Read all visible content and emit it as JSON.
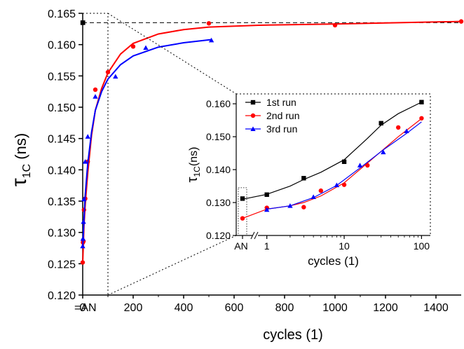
{
  "chart_data": [
    {
      "id": "main",
      "type": "scatter",
      "xlabel": "cycles (1)",
      "ylabel_main": "τ",
      "ylabel_sub": "1C",
      "ylabel_unit": "(ns)",
      "xlim": [
        0,
        1500
      ],
      "ylim": [
        0.12,
        0.165
      ],
      "x_ticks": [
        0,
        200,
        400,
        600,
        800,
        1000,
        1200,
        1400
      ],
      "y_ticks": [
        0.12,
        0.125,
        0.13,
        0.135,
        0.14,
        0.145,
        0.15,
        0.155,
        0.16,
        0.165
      ],
      "x_tick_labels": [
        "0",
        "200",
        "400",
        "600",
        "800",
        "1000",
        "1200",
        "1400"
      ],
      "y_tick_labels": [
        "0.120",
        "0.125",
        "0.130",
        "0.135",
        "0.140",
        "0.145",
        "0.150",
        "0.155",
        "0.160",
        "0.165"
      ],
      "an_label": "=AN",
      "grid": false,
      "series": [
        {
          "color": "#000000",
          "marker": "square",
          "points": [
            [
              0,
              0.1635
            ],
            [
              1,
              0.1635
            ]
          ],
          "curve": [],
          "dashed_to": 1500
        },
        {
          "color": "#ff0000",
          "marker": "circle",
          "points": [
            [
              0,
              0.1252
            ],
            [
              1,
              0.1284
            ],
            [
              3,
              0.1286
            ],
            [
              5,
              0.1336
            ],
            [
              10,
              0.1354
            ],
            [
              20,
              0.1413
            ],
            [
              50,
              0.1528
            ],
            [
              100,
              0.1556
            ],
            [
              200,
              0.1597
            ],
            [
              500,
              0.1634
            ],
            [
              1000,
              0.1631
            ],
            [
              1500,
              0.1637
            ]
          ],
          "curve": [
            [
              0,
              0.125
            ],
            [
              5,
              0.131
            ],
            [
              10,
              0.1345
            ],
            [
              20,
              0.1395
            ],
            [
              35,
              0.1455
            ],
            [
              50,
              0.1495
            ],
            [
              75,
              0.153
            ],
            [
              100,
              0.1555
            ],
            [
              150,
              0.1585
            ],
            [
              200,
              0.1602
            ],
            [
              300,
              0.1617
            ],
            [
              400,
              0.1624
            ],
            [
              500,
              0.1628
            ],
            [
              700,
              0.1631
            ],
            [
              1000,
              0.1633
            ],
            [
              1500,
              0.1637
            ]
          ]
        },
        {
          "color": "#0000ff",
          "marker": "triangle",
          "points": [
            [
              0,
              0.1278
            ],
            [
              1,
              0.129
            ],
            [
              3,
              0.1317
            ],
            [
              5,
              0.1353
            ],
            [
              10,
              0.1413
            ],
            [
              20,
              0.1453
            ],
            [
              50,
              0.1517
            ],
            [
              130,
              0.1549
            ],
            [
              250,
              0.1595
            ],
            [
              510,
              0.1607
            ]
          ],
          "curve": [
            [
              0,
              0.1275
            ],
            [
              5,
              0.132
            ],
            [
              10,
              0.136
            ],
            [
              20,
              0.141
            ],
            [
              35,
              0.146
            ],
            [
              50,
              0.1495
            ],
            [
              75,
              0.1525
            ],
            [
              100,
              0.1545
            ],
            [
              150,
              0.1568
            ],
            [
              200,
              0.1582
            ],
            [
              300,
              0.1596
            ],
            [
              400,
              0.1603
            ],
            [
              510,
              0.1608
            ]
          ]
        }
      ],
      "zoom_box": {
        "x": [
          0,
          100
        ],
        "y": [
          0.12,
          0.165
        ]
      }
    },
    {
      "id": "inset",
      "type": "line",
      "xlabel": "cycles (1)",
      "ylabel_main": "τ",
      "ylabel_sub": "1C",
      "ylabel_unit": "(ns)",
      "x_scale": "log",
      "xlim": [
        0.8,
        130
      ],
      "ylim": [
        0.12,
        0.163
      ],
      "x_ticks": [
        1,
        10,
        100
      ],
      "x_tick_labels": [
        "1",
        "10",
        "100"
      ],
      "an_tick_label": "AN",
      "y_ticks": [
        0.12,
        0.13,
        0.14,
        0.15,
        0.16
      ],
      "y_tick_labels": [
        "0.120",
        "0.130",
        "0.140",
        "0.150",
        "0.160"
      ],
      "legend_position": "top-left",
      "series": [
        {
          "name": "1st run",
          "color": "#000000",
          "marker": "square",
          "an_point": 0.1312,
          "points": [
            [
              1,
              0.1324
            ],
            [
              3,
              0.1374
            ],
            [
              10,
              0.1424
            ],
            [
              30,
              0.1541
            ],
            [
              100,
              0.1605
            ]
          ],
          "an_curve": 0.131,
          "curve": [
            [
              1,
              0.1325
            ],
            [
              2,
              0.135
            ],
            [
              3,
              0.137
            ],
            [
              5,
              0.1392
            ],
            [
              10,
              0.143
            ],
            [
              20,
              0.1495
            ],
            [
              30,
              0.1535
            ],
            [
              50,
              0.157
            ],
            [
              100,
              0.1605
            ]
          ]
        },
        {
          "name": "2nd run",
          "color": "#ff0000",
          "marker": "circle",
          "an_point": 0.1252,
          "points": [
            [
              1,
              0.1284
            ],
            [
              3,
              0.1286
            ],
            [
              5,
              0.1336
            ],
            [
              10,
              0.1354
            ],
            [
              20,
              0.1413
            ],
            [
              50,
              0.1528
            ],
            [
              100,
              0.1556
            ]
          ],
          "an_curve": 0.1252,
          "curve": [
            [
              1,
              0.128
            ],
            [
              2,
              0.129
            ],
            [
              3,
              0.13
            ],
            [
              5,
              0.132
            ],
            [
              10,
              0.136
            ],
            [
              20,
              0.142
            ],
            [
              50,
              0.15
            ],
            [
              100,
              0.1555
            ]
          ]
        },
        {
          "name": "3rd run",
          "color": "#0000ff",
          "marker": "triangle",
          "points": [
            [
              1,
              0.1278
            ],
            [
              2,
              0.129
            ],
            [
              4,
              0.1317
            ],
            [
              8,
              0.1353
            ],
            [
              16,
              0.1413
            ],
            [
              32,
              0.1453
            ],
            [
              64,
              0.1517
            ]
          ],
          "curve": [
            [
              1,
              0.128
            ],
            [
              2,
              0.129
            ],
            [
              4,
              0.1315
            ],
            [
              8,
              0.1352
            ],
            [
              16,
              0.1405
            ],
            [
              32,
              0.146
            ],
            [
              64,
              0.151
            ],
            [
              100,
              0.1545
            ]
          ]
        }
      ]
    }
  ]
}
